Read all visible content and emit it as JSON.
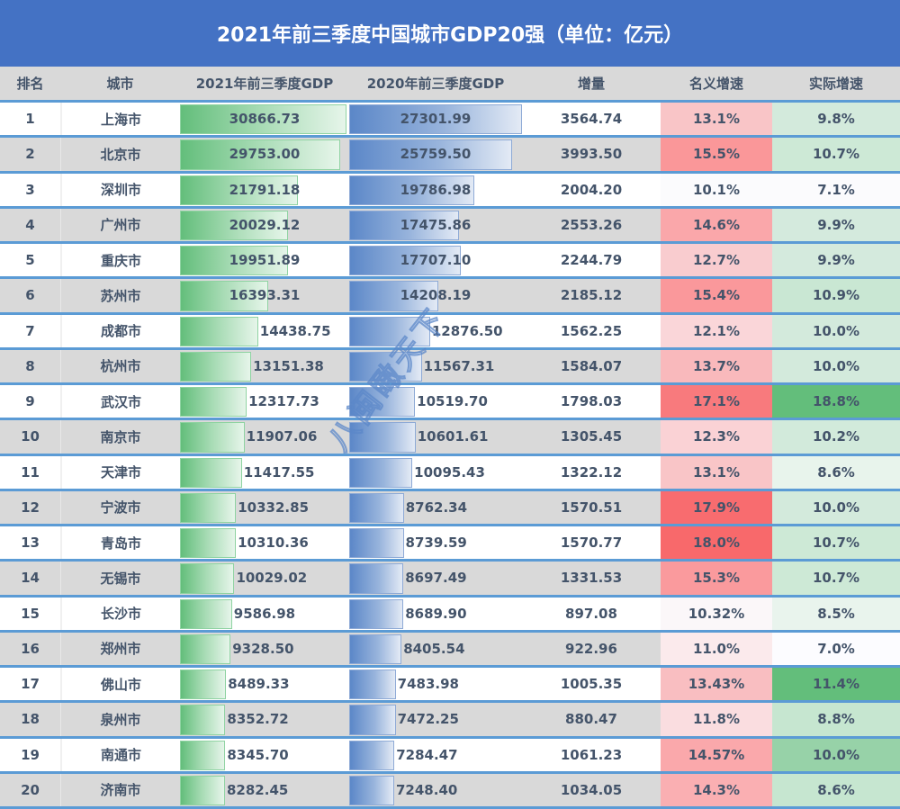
{
  "title": "2021年前三季度中国城市GDP20强（单位：亿元）",
  "headers": {
    "rank": "排名",
    "city": "城市",
    "gdp2021": "2021年前三季度GDP",
    "gdp2020": "2020年前三季度GDP",
    "increase": "增量",
    "nominal_growth": "名义增速",
    "real_growth": "实际增速"
  },
  "colors": {
    "title_bg": "#4472c4",
    "header_bg": "#d9d9d9",
    "row_border": "#5b9bd5",
    "bar_2021": "#63be7b",
    "bar_2020": "#5b87c8",
    "text": "#44546a"
  },
  "watermark": "八闽瞰天下",
  "rows": [
    {
      "rank": "1",
      "city": "上海市",
      "gdp2021": "30866.73",
      "gdp2020": "27301.99",
      "increase": "3564.74",
      "nominal": "13.1%",
      "real": "9.8%",
      "nominal_color": "#f9c5c7",
      "real_color": "#d3eadc"
    },
    {
      "rank": "2",
      "city": "北京市",
      "gdp2021": "29753.00",
      "gdp2020": "25759.50",
      "increase": "3993.50",
      "nominal": "15.5%",
      "real": "10.7%",
      "nominal_color": "#fa9799",
      "real_color": "#cde9d6"
    },
    {
      "rank": "3",
      "city": "深圳市",
      "gdp2021": "21791.18",
      "gdp2020": "19786.98",
      "increase": "2004.20",
      "nominal": "10.1%",
      "real": "7.1%",
      "nominal_color": "#fbfbfd",
      "real_color": "#fbfbfd"
    },
    {
      "rank": "4",
      "city": "广州市",
      "gdp2021": "20029.12",
      "gdp2020": "17475.86",
      "increase": "2553.26",
      "nominal": "14.6%",
      "real": "9.9%",
      "nominal_color": "#faa7aa",
      "real_color": "#d4eadd"
    },
    {
      "rank": "5",
      "city": "重庆市",
      "gdp2021": "19951.89",
      "gdp2020": "17707.10",
      "increase": "2244.79",
      "nominal": "12.7%",
      "real": "9.9%",
      "nominal_color": "#f9cccf",
      "real_color": "#d4eadd"
    },
    {
      "rank": "6",
      "city": "苏州市",
      "gdp2021": "16393.31",
      "gdp2020": "14208.19",
      "increase": "2185.12",
      "nominal": "15.4%",
      "real": "10.9%",
      "nominal_color": "#fa989b",
      "real_color": "#c9e7d3"
    },
    {
      "rank": "7",
      "city": "成都市",
      "gdp2021": "14438.75",
      "gdp2020": "12876.50",
      "increase": "1562.25",
      "nominal": "12.1%",
      "real": "10.0%",
      "nominal_color": "#fad6d9",
      "real_color": "#d3eadc"
    },
    {
      "rank": "8",
      "city": "杭州市",
      "gdp2021": "13151.38",
      "gdp2020": "11567.31",
      "increase": "1584.07",
      "nominal": "13.7%",
      "real": "10.0%",
      "nominal_color": "#f9b9bc",
      "real_color": "#d3eadc"
    },
    {
      "rank": "9",
      "city": "武汉市",
      "gdp2021": "12317.73",
      "gdp2020": "10519.70",
      "increase": "1798.03",
      "nominal": "17.1%",
      "real": "18.8%",
      "nominal_color": "#f87a7d",
      "real_color": "#63be7b"
    },
    {
      "rank": "10",
      "city": "南京市",
      "gdp2021": "11907.06",
      "gdp2020": "10601.61",
      "increase": "1305.45",
      "nominal": "12.3%",
      "real": "10.2%",
      "nominal_color": "#fad2d5",
      "real_color": "#d2eadb"
    },
    {
      "rank": "11",
      "city": "天津市",
      "gdp2021": "11417.55",
      "gdp2020": "10095.43",
      "increase": "1322.12",
      "nominal": "13.1%",
      "real": "8.6%",
      "nominal_color": "#f9c5c7",
      "real_color": "#e8f4ec"
    },
    {
      "rank": "12",
      "city": "宁波市",
      "gdp2021": "10332.85",
      "gdp2020": "8762.34",
      "increase": "1570.51",
      "nominal": "17.9%",
      "real": "10.0%",
      "nominal_color": "#f86c6f",
      "real_color": "#d3eadc"
    },
    {
      "rank": "13",
      "city": "青岛市",
      "gdp2021": "10310.36",
      "gdp2020": "8739.59",
      "increase": "1570.77",
      "nominal": "18.0%",
      "real": "10.7%",
      "nominal_color": "#f8696b",
      "real_color": "#cde9d6"
    },
    {
      "rank": "14",
      "city": "无锡市",
      "gdp2021": "10029.02",
      "gdp2020": "8697.49",
      "increase": "1331.53",
      "nominal": "15.3%",
      "real": "10.7%",
      "nominal_color": "#fa9a9d",
      "real_color": "#cde9d6"
    },
    {
      "rank": "15",
      "city": "长沙市",
      "gdp2021": "9586.98",
      "gdp2020": "8689.90",
      "increase": "897.08",
      "nominal": "10.32%",
      "real": "8.5%",
      "nominal_color": "#fbf7f9",
      "real_color": "#e9f4ed"
    },
    {
      "rank": "16",
      "city": "郑州市",
      "gdp2021": "9328.50",
      "gdp2020": "8405.54",
      "increase": "922.96",
      "nominal": "11.0%",
      "real": "7.0%",
      "nominal_color": "#fbeaec",
      "real_color": "#fcfcff"
    },
    {
      "rank": "17",
      "city": "佛山市",
      "gdp2021": "8489.33",
      "gdp2020": "7483.98",
      "increase": "1005.35",
      "nominal": "13.43%",
      "real": "11.4%",
      "nominal_color": "#f9bec1",
      "real_color": "#63be7b"
    },
    {
      "rank": "18",
      "city": "泉州市",
      "gdp2021": "8352.72",
      "gdp2020": "7472.25",
      "increase": "880.47",
      "nominal": "11.8%",
      "real": "8.8%",
      "nominal_color": "#fadde0",
      "real_color": "#c6e6d0"
    },
    {
      "rank": "19",
      "city": "南通市",
      "gdp2021": "8345.70",
      "gdp2020": "7284.47",
      "increase": "1061.23",
      "nominal": "14.57%",
      "real": "10.0%",
      "nominal_color": "#faa8ab",
      "real_color": "#97d2a8"
    },
    {
      "rank": "20",
      "city": "济南市",
      "gdp2021": "8282.45",
      "gdp2020": "7248.40",
      "increase": "1034.05",
      "nominal": "14.3%",
      "real": "8.6%",
      "nominal_color": "#faafb2",
      "real_color": "#c6e6d0"
    }
  ]
}
